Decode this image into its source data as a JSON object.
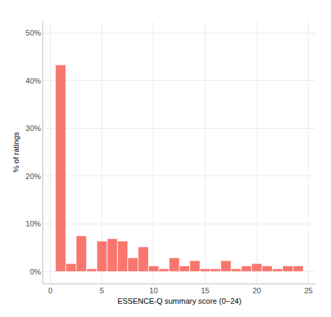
{
  "chart_data": {
    "type": "histogram",
    "x_label": "ESSENCE-Q summary score (0−24)",
    "y_label": "% of ratings",
    "bins": [
      0.5,
      1.5,
      2.5,
      3.5,
      4.5,
      5.5,
      6.5,
      7.5,
      8.5,
      9.5,
      10.5,
      11.5,
      12.5,
      13.5,
      14.5,
      15.5,
      16.5,
      17.5,
      18.5,
      19.5,
      20.5,
      21.5,
      22.5,
      23.5,
      24.5
    ],
    "values": [
      43.3,
      1.7,
      7.5,
      0.6,
      6.4,
      6.9,
      6.4,
      2.9,
      5.2,
      1.2,
      0.6,
      2.9,
      1.2,
      2.3,
      0.6,
      0.6,
      2.3,
      0.6,
      1.2,
      1.7,
      1.2,
      0.6,
      1.2,
      1.2
    ],
    "color": "#F8766D",
    "xlim": [
      -0.7,
      25.7
    ],
    "xticks": [
      0,
      5,
      10,
      15,
      20,
      25
    ],
    "ylim": [
      -2.5,
      52.5
    ],
    "yticks": [
      {
        "value": 0,
        "label": "0%"
      },
      {
        "value": 10,
        "label": "10%"
      },
      {
        "value": 20,
        "label": "20%"
      },
      {
        "value": 30,
        "label": "30%"
      },
      {
        "value": 40,
        "label": "40%"
      },
      {
        "value": 50,
        "label": "50%"
      }
    ],
    "grid": true
  }
}
